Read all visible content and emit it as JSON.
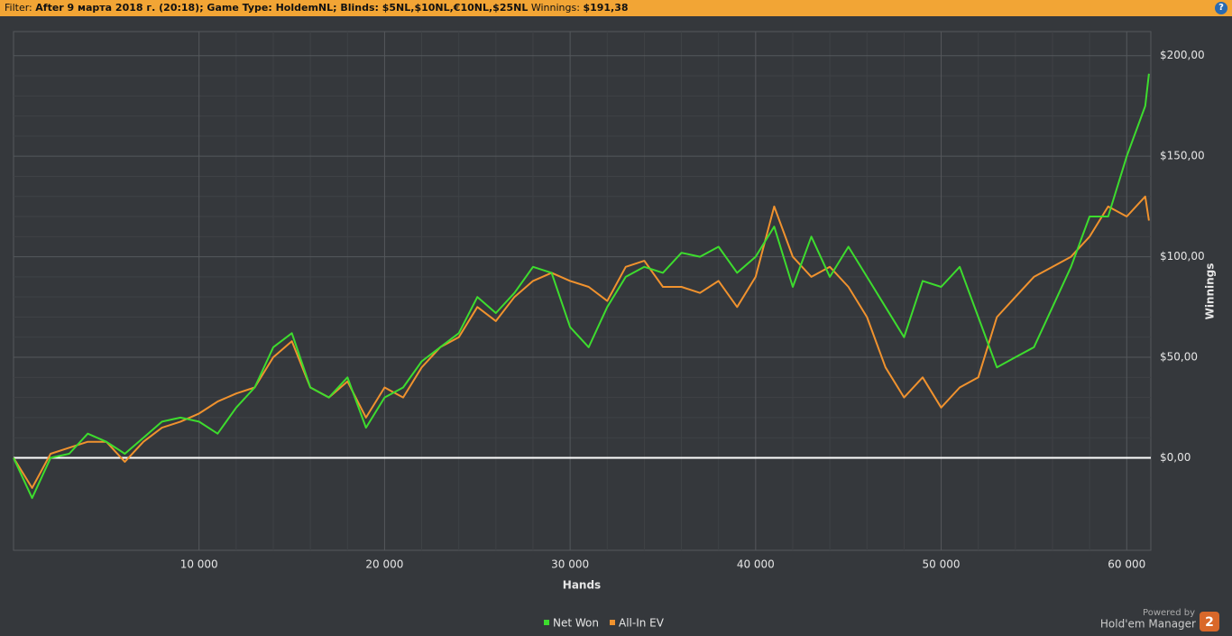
{
  "filter_bar": {
    "label": "Filter:",
    "criteria": "After 9 марта 2018 г. (20:18); Game Type: HoldemNL; Blinds: $5NL,$10NL,€10NL,$25NL",
    "winnings_label": "Winnings:",
    "winnings": "$191,38",
    "help": "?"
  },
  "branding": {
    "powered": "Powered by",
    "product": "Hold'em Manager",
    "badge": "2"
  },
  "chart_data": {
    "type": "line",
    "x_label": "Hands",
    "y_label": "Winnings",
    "x": [
      0,
      1000,
      2000,
      3000,
      4000,
      5000,
      6000,
      7000,
      8000,
      9000,
      10000,
      11000,
      12000,
      13000,
      14000,
      15000,
      16000,
      17000,
      18000,
      19000,
      20000,
      21000,
      22000,
      23000,
      24000,
      25000,
      26000,
      27000,
      28000,
      29000,
      30000,
      31000,
      32000,
      33000,
      34000,
      35000,
      36000,
      37000,
      38000,
      39000,
      40000,
      41000,
      42000,
      43000,
      44000,
      45000,
      46000,
      47000,
      48000,
      49000,
      50000,
      51000,
      52000,
      53000,
      54000,
      55000,
      56000,
      57000,
      58000,
      59000,
      60000,
      61000,
      61200
    ],
    "series": [
      {
        "name": "Net Won",
        "color": "#3ddc2e",
        "values": [
          0,
          -20,
          0,
          2,
          12,
          8,
          2,
          10,
          18,
          20,
          18,
          12,
          25,
          35,
          55,
          62,
          35,
          30,
          40,
          15,
          30,
          35,
          48,
          55,
          62,
          80,
          72,
          82,
          95,
          92,
          65,
          55,
          75,
          90,
          95,
          92,
          102,
          100,
          105,
          92,
          100,
          115,
          85,
          110,
          90,
          105,
          90,
          75,
          60,
          88,
          85,
          95,
          70,
          45,
          50,
          55,
          75,
          95,
          120,
          120,
          150,
          175,
          191
        ]
      },
      {
        "name": "All-In EV",
        "color": "#f0922e",
        "values": [
          0,
          -15,
          2,
          5,
          8,
          8,
          -2,
          8,
          15,
          18,
          22,
          28,
          32,
          35,
          50,
          58,
          35,
          30,
          38,
          20,
          35,
          30,
          45,
          55,
          60,
          75,
          68,
          80,
          88,
          92,
          88,
          85,
          78,
          95,
          98,
          85,
          85,
          82,
          88,
          75,
          90,
          125,
          100,
          90,
          95,
          85,
          70,
          45,
          30,
          40,
          25,
          35,
          40,
          70,
          80,
          90,
          95,
          100,
          110,
          125,
          120,
          130,
          118
        ]
      }
    ],
    "xlim": [
      0,
      61300
    ],
    "ylim": [
      -46,
      212
    ],
    "xticks": [
      {
        "value": 10000,
        "label": "10 000"
      },
      {
        "value": 20000,
        "label": "20 000"
      },
      {
        "value": 30000,
        "label": "30 000"
      },
      {
        "value": 40000,
        "label": "40 000"
      },
      {
        "value": 50000,
        "label": "50 000"
      },
      {
        "value": 60000,
        "label": "60 000"
      }
    ],
    "yticks": [
      {
        "value": 0,
        "label": "$0,00"
      },
      {
        "value": 50,
        "label": "$50,00"
      },
      {
        "value": 100,
        "label": "$100,00"
      },
      {
        "value": 150,
        "label": "$150,00"
      },
      {
        "value": 200,
        "label": "$200,00"
      }
    ],
    "grid": true,
    "legend": "bottom"
  }
}
